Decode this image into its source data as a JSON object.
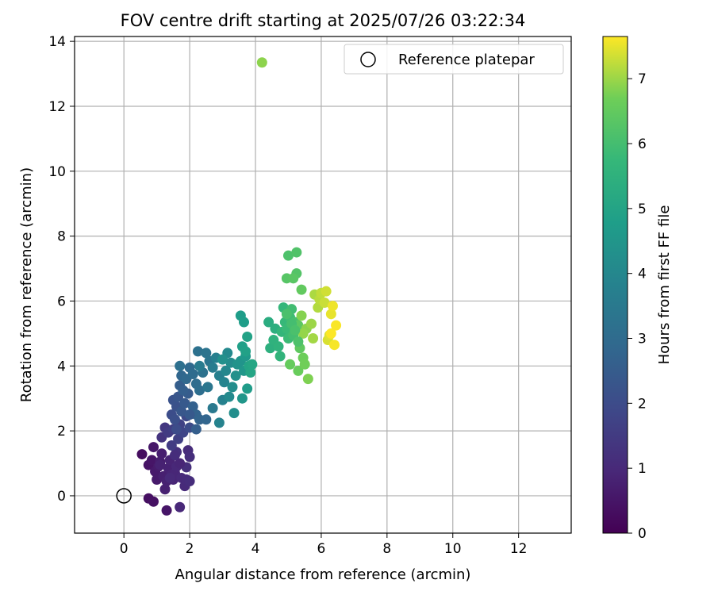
{
  "chart_data": {
    "type": "scatter",
    "title": "FOV centre drift starting at 2025/07/26 03:22:34",
    "xlabel": "Angular distance from reference (arcmin)",
    "ylabel": "Rotation from reference (arcmin)",
    "xlim": [
      -1.5,
      13.6
    ],
    "ylim": [
      -1.15,
      14.15
    ],
    "xticks": [
      "0",
      "2",
      "4",
      "6",
      "8",
      "10",
      "12"
    ],
    "yticks": [
      "0",
      "2",
      "4",
      "6",
      "8",
      "10",
      "12",
      "14"
    ],
    "grid": true,
    "legend": {
      "placement": "top-right",
      "entries": [
        "Reference platepar"
      ]
    },
    "reference_point": {
      "x": 0,
      "y": 0
    },
    "colorbar": {
      "label": "Hours from first FF file",
      "colormap": "viridis",
      "range": [
        0,
        7.65
      ],
      "ticks": [
        "0",
        "1",
        "2",
        "3",
        "4",
        "5",
        "6",
        "7"
      ]
    },
    "points": [
      [
        0.55,
        1.28,
        0.3
      ],
      [
        0.75,
        -0.08,
        0.35
      ],
      [
        0.9,
        -0.18,
        0.4
      ],
      [
        0.75,
        0.95,
        0.45
      ],
      [
        0.85,
        1.1,
        0.5
      ],
      [
        0.9,
        1.5,
        0.55
      ],
      [
        0.95,
        0.75,
        0.6
      ],
      [
        1.0,
        0.5,
        0.62
      ],
      [
        1.05,
        0.9,
        0.65
      ],
      [
        1.1,
        1.05,
        0.7
      ],
      [
        1.15,
        1.3,
        0.72
      ],
      [
        1.2,
        0.6,
        0.75
      ],
      [
        1.25,
        0.2,
        0.78
      ],
      [
        1.3,
        0.45,
        0.8
      ],
      [
        1.35,
        0.85,
        0.82
      ],
      [
        1.4,
        1.1,
        0.85
      ],
      [
        1.45,
        0.65,
        0.88
      ],
      [
        1.5,
        0.5,
        0.9
      ],
      [
        1.55,
        0.7,
        0.92
      ],
      [
        1.6,
        0.9,
        0.95
      ],
      [
        1.7,
        -0.35,
        0.97
      ],
      [
        1.75,
        0.55,
        1.0
      ],
      [
        1.85,
        0.3,
        1.02
      ],
      [
        1.9,
        0.5,
        1.05
      ],
      [
        1.95,
        1.4,
        1.07
      ],
      [
        2.0,
        0.45,
        1.1
      ],
      [
        2.0,
        1.2,
        1.12
      ],
      [
        1.9,
        0.88,
        1.15
      ],
      [
        1.3,
        -0.45,
        0.5
      ],
      [
        1.6,
        1.35,
        1.2
      ],
      [
        1.15,
        1.8,
        1.3
      ],
      [
        1.25,
        2.1,
        1.4
      ],
      [
        1.35,
        1.95,
        1.5
      ],
      [
        1.45,
        1.55,
        1.55
      ],
      [
        1.5,
        2.05,
        1.6
      ],
      [
        1.65,
        1.75,
        1.65
      ],
      [
        1.7,
        2.2,
        1.7
      ],
      [
        1.8,
        1.95,
        1.8
      ],
      [
        1.9,
        2.45,
        1.9
      ],
      [
        2.0,
        2.1,
        2.0
      ],
      [
        1.45,
        2.5,
        2.05
      ],
      [
        1.55,
        2.35,
        2.1
      ],
      [
        1.6,
        2.75,
        2.15
      ],
      [
        1.5,
        2.95,
        2.2
      ],
      [
        1.65,
        3.05,
        2.3
      ],
      [
        1.75,
        2.6,
        2.35
      ],
      [
        1.85,
        2.85,
        2.4
      ],
      [
        1.95,
        3.15,
        2.5
      ],
      [
        1.7,
        3.4,
        2.55
      ],
      [
        1.8,
        3.25,
        2.6
      ],
      [
        2.1,
        2.75,
        2.65
      ],
      [
        2.2,
        2.5,
        2.7
      ],
      [
        2.3,
        2.35,
        2.75
      ],
      [
        2.5,
        2.35,
        2.8
      ],
      [
        1.75,
        3.7,
        2.85
      ],
      [
        1.9,
        3.6,
        2.9
      ],
      [
        2.0,
        3.95,
        2.95
      ],
      [
        2.1,
        3.75,
        3.0
      ],
      [
        2.2,
        3.45,
        3.05
      ],
      [
        2.3,
        3.25,
        3.1
      ],
      [
        1.7,
        4.0,
        3.15
      ],
      [
        2.25,
        4.45,
        3.2
      ],
      [
        2.4,
        3.8,
        3.25
      ],
      [
        2.5,
        4.4,
        3.3
      ],
      [
        2.6,
        4.15,
        3.35
      ],
      [
        2.55,
        3.35,
        3.4
      ],
      [
        2.7,
        2.7,
        3.5
      ],
      [
        2.3,
        4.0,
        3.55
      ],
      [
        2.7,
        3.95,
        3.6
      ],
      [
        2.8,
        4.25,
        3.7
      ],
      [
        2.9,
        3.7,
        3.75
      ],
      [
        3.0,
        2.95,
        3.8
      ],
      [
        2.9,
        2.25,
        3.85
      ],
      [
        3.05,
        3.5,
        3.9
      ],
      [
        3.1,
        3.85,
        4.0
      ],
      [
        3.15,
        4.4,
        4.05
      ],
      [
        3.2,
        3.05,
        4.1
      ],
      [
        3.25,
        4.1,
        4.15
      ],
      [
        3.3,
        3.35,
        4.2
      ],
      [
        3.35,
        2.55,
        4.25
      ],
      [
        3.0,
        4.2,
        4.3
      ],
      [
        3.4,
        3.7,
        4.35
      ],
      [
        3.45,
        4.05,
        4.4
      ],
      [
        3.55,
        4.15,
        4.45
      ],
      [
        3.6,
        3.0,
        4.5
      ],
      [
        3.65,
        3.85,
        4.55
      ],
      [
        3.7,
        4.3,
        4.6
      ],
      [
        3.75,
        3.3,
        4.7
      ],
      [
        3.55,
        5.55,
        4.75
      ],
      [
        3.65,
        5.35,
        4.8
      ],
      [
        3.6,
        4.6,
        4.85
      ],
      [
        3.7,
        4.45,
        4.9
      ],
      [
        3.75,
        4.9,
        4.95
      ],
      [
        3.8,
        4.0,
        5.0
      ],
      [
        3.85,
        3.8,
        5.05
      ],
      [
        3.9,
        4.05,
        5.1
      ],
      [
        4.4,
        5.35,
        5.3
      ],
      [
        4.6,
        5.15,
        5.4
      ],
      [
        4.45,
        4.55,
        5.45
      ],
      [
        4.55,
        4.8,
        5.5
      ],
      [
        4.7,
        4.6,
        5.55
      ],
      [
        4.75,
        4.3,
        5.6
      ],
      [
        4.8,
        5.05,
        5.65
      ],
      [
        4.85,
        5.8,
        5.7
      ],
      [
        4.9,
        5.35,
        5.75
      ],
      [
        4.95,
        5.15,
        5.8
      ],
      [
        5.0,
        4.85,
        5.85
      ],
      [
        5.05,
        5.5,
        5.9
      ],
      [
        5.1,
        5.75,
        5.95
      ],
      [
        5.15,
        4.95,
        6.0
      ],
      [
        5.2,
        5.35,
        6.05
      ],
      [
        4.95,
        5.6,
        6.1
      ],
      [
        5.0,
        7.4,
        6.15
      ],
      [
        5.25,
        7.5,
        6.2
      ],
      [
        5.25,
        6.85,
        6.25
      ],
      [
        4.95,
        6.7,
        6.3
      ],
      [
        5.15,
        6.7,
        6.35
      ],
      [
        5.3,
        5.25,
        6.4
      ],
      [
        5.35,
        4.55,
        6.45
      ],
      [
        5.4,
        6.35,
        6.5
      ],
      [
        5.05,
        4.05,
        6.55
      ],
      [
        5.3,
        3.85,
        6.6
      ],
      [
        5.45,
        4.25,
        6.65
      ],
      [
        5.5,
        4.05,
        6.7
      ],
      [
        5.6,
        3.6,
        6.8
      ],
      [
        5.4,
        5.55,
        6.85
      ],
      [
        5.55,
        5.15,
        6.9
      ],
      [
        5.45,
        5.0,
        6.95
      ],
      [
        5.7,
        5.3,
        7.0
      ],
      [
        5.75,
        4.85,
        7.05
      ],
      [
        5.8,
        6.2,
        7.1
      ],
      [
        5.9,
        5.8,
        7.15
      ],
      [
        5.95,
        6.05,
        7.2
      ],
      [
        6.0,
        6.25,
        7.25
      ],
      [
        6.1,
        5.95,
        7.3
      ],
      [
        6.15,
        6.3,
        7.35
      ],
      [
        6.2,
        4.8,
        7.4
      ],
      [
        6.25,
        4.95,
        7.45
      ],
      [
        6.3,
        5.6,
        7.5
      ],
      [
        6.35,
        5.85,
        7.55
      ],
      [
        6.4,
        4.65,
        7.6
      ],
      [
        6.45,
        5.25,
        7.62
      ],
      [
        6.3,
        5.0,
        7.64
      ],
      [
        4.2,
        13.35,
        6.9
      ],
      [
        5.1,
        5.3,
        6.0
      ],
      [
        5.2,
        5.1,
        6.1
      ],
      [
        5.3,
        4.75,
        6.15
      ],
      [
        2.2,
        2.05,
        2.6
      ],
      [
        2.0,
        2.5,
        2.4
      ],
      [
        1.6,
        2.05,
        2.0
      ],
      [
        1.7,
        1.0,
        0.9
      ],
      [
        1.55,
        1.25,
        1.1
      ],
      [
        1.1,
        0.95,
        0.8
      ],
      [
        1.4,
        0.55,
        1.0
      ]
    ]
  }
}
